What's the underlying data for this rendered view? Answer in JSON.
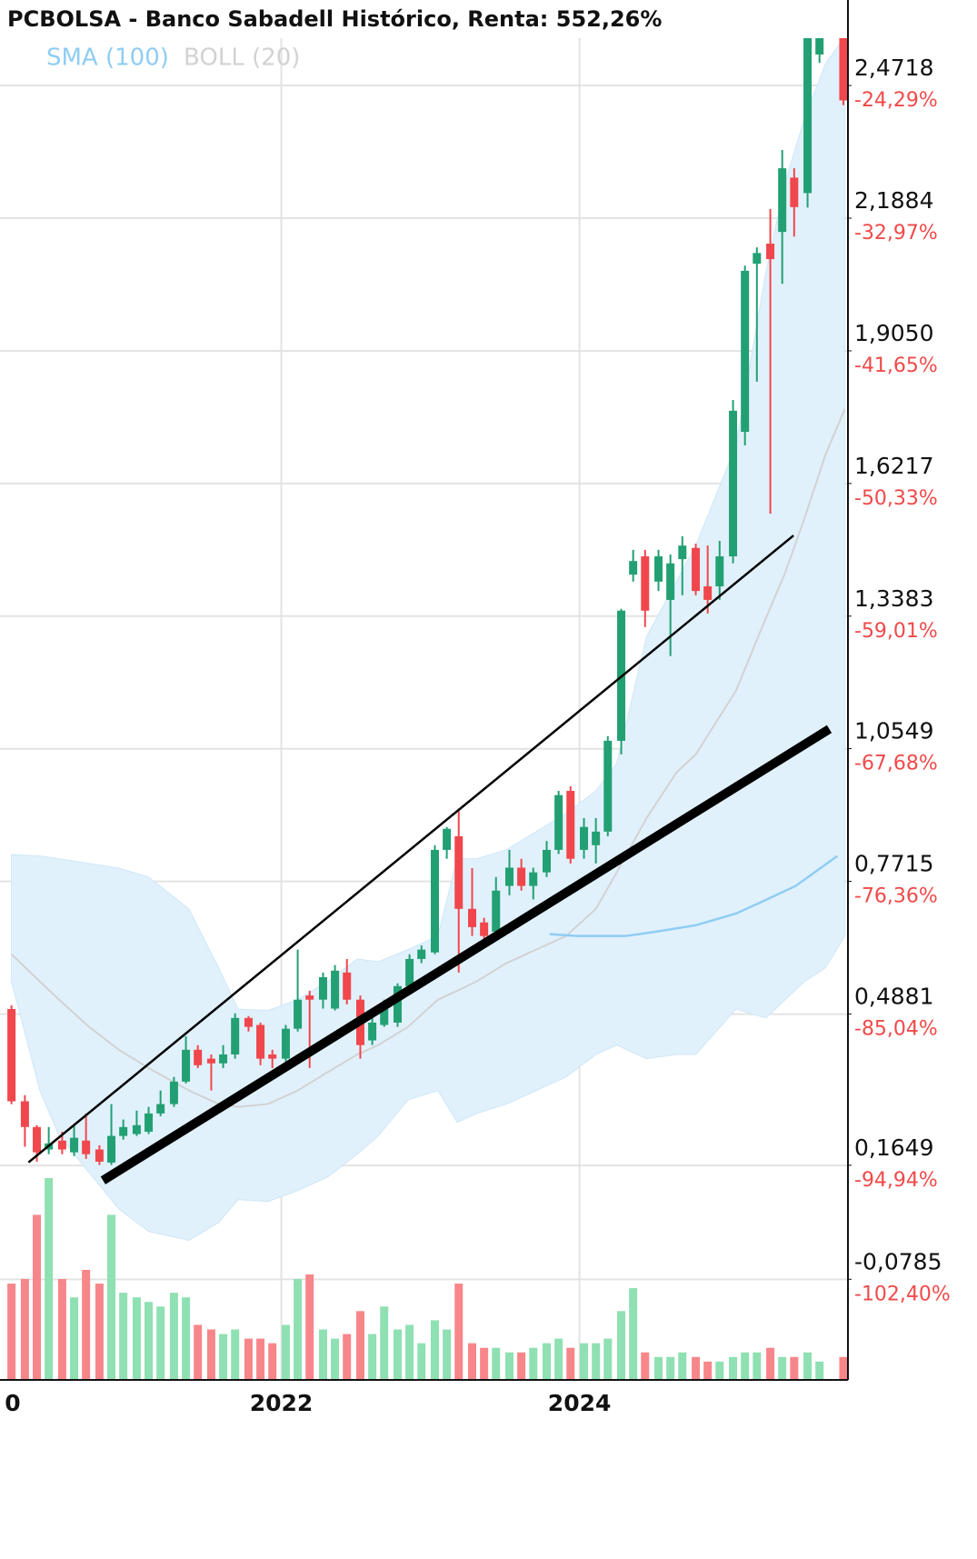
{
  "chart_data": {
    "type": "candlestick",
    "title": "PCBOLSA - Banco Sabadell Histórico, Renta: 552,26%",
    "x": [
      2020.19,
      2020.28,
      2020.36,
      2020.44,
      2020.53,
      2020.61,
      2020.69,
      2020.78,
      2020.86,
      2020.94,
      2021.03,
      2021.11,
      2021.19,
      2021.28,
      2021.36,
      2021.44,
      2021.53,
      2021.61,
      2021.69,
      2021.78,
      2021.86,
      2021.94,
      2022.03,
      2022.11,
      2022.19,
      2022.28,
      2022.36,
      2022.44,
      2022.53,
      2022.61,
      2022.69,
      2022.78,
      2022.86,
      2022.94,
      2023.03,
      2023.11,
      2023.19,
      2023.28,
      2023.36,
      2023.44,
      2023.53,
      2023.61,
      2023.69,
      2023.78,
      2023.86,
      2023.94,
      2024.03,
      2024.11,
      2024.19,
      2024.28,
      2024.36,
      2024.44,
      2024.53,
      2024.61,
      2024.69,
      2024.78,
      2024.86,
      2024.94,
      2025.03,
      2025.11,
      2025.19,
      2025.28,
      2025.36,
      2025.44,
      2025.53,
      2025.61,
      2025.77
    ],
    "open": [
      0.499,
      0.302,
      0.247,
      0.199,
      0.218,
      0.193,
      0.218,
      0.199,
      0.171,
      0.228,
      0.232,
      0.237,
      0.276,
      0.296,
      0.344,
      0.412,
      0.393,
      0.383,
      0.402,
      0.48,
      0.465,
      0.402,
      0.393,
      0.457,
      0.528,
      0.519,
      0.5,
      0.577,
      0.519,
      0.432,
      0.465,
      0.47,
      0.548,
      0.606,
      0.62,
      0.839,
      0.868,
      0.713,
      0.684,
      0.664,
      0.762,
      0.801,
      0.762,
      0.791,
      0.839,
      0.965,
      0.839,
      0.849,
      0.878,
      1.072,
      1.427,
      1.466,
      1.412,
      1.373,
      1.46,
      1.484,
      1.402,
      1.402,
      1.466,
      1.732,
      2.091,
      2.134,
      2.159,
      2.275,
      2.242,
      2.538,
      2.6
    ],
    "high": [
      0.507,
      0.315,
      0.251,
      0.247,
      0.237,
      0.251,
      0.276,
      0.208,
      0.296,
      0.263,
      0.282,
      0.29,
      0.325,
      0.354,
      0.441,
      0.422,
      0.402,
      0.422,
      0.49,
      0.484,
      0.47,
      0.412,
      0.465,
      0.626,
      0.538,
      0.577,
      0.593,
      0.606,
      0.528,
      0.48,
      0.519,
      0.554,
      0.616,
      0.635,
      0.849,
      0.888,
      0.927,
      0.8,
      0.694,
      0.781,
      0.839,
      0.82,
      0.801,
      0.858,
      0.965,
      0.975,
      0.907,
      0.907,
      1.082,
      1.354,
      1.48,
      1.48,
      1.48,
      1.47,
      1.509,
      1.493,
      1.489,
      1.499,
      1.8,
      2.087,
      2.126,
      2.208,
      2.334,
      2.295,
      2.586,
      2.62,
      2.62
    ],
    "low": [
      0.296,
      0.205,
      0.173,
      0.189,
      0.189,
      0.185,
      0.179,
      0.166,
      0.166,
      0.22,
      0.228,
      0.232,
      0.27,
      0.29,
      0.34,
      0.373,
      0.325,
      0.373,
      0.393,
      0.451,
      0.379,
      0.373,
      0.387,
      0.451,
      0.373,
      0.5,
      0.496,
      0.509,
      0.393,
      0.422,
      0.461,
      0.461,
      0.538,
      0.597,
      0.616,
      0.82,
      0.577,
      0.655,
      0.645,
      0.655,
      0.742,
      0.752,
      0.733,
      0.781,
      0.83,
      0.81,
      0.82,
      0.81,
      0.868,
      1.043,
      1.412,
      1.315,
      1.392,
      1.253,
      1.383,
      1.383,
      1.344,
      1.373,
      1.451,
      1.703,
      1.839,
      1.557,
      2.048,
      2.149,
      2.211,
      2.52,
      2.43
    ],
    "close": [
      0.302,
      0.247,
      0.193,
      0.212,
      0.199,
      0.224,
      0.189,
      0.173,
      0.228,
      0.247,
      0.251,
      0.276,
      0.296,
      0.344,
      0.412,
      0.379,
      0.383,
      0.402,
      0.48,
      0.461,
      0.393,
      0.393,
      0.457,
      0.519,
      0.519,
      0.567,
      0.581,
      0.519,
      0.422,
      0.47,
      0.5,
      0.548,
      0.606,
      0.626,
      0.839,
      0.884,
      0.713,
      0.674,
      0.655,
      0.752,
      0.801,
      0.762,
      0.791,
      0.839,
      0.956,
      0.82,
      0.888,
      0.878,
      1.072,
      1.35,
      1.456,
      1.35,
      1.466,
      1.451,
      1.489,
      1.392,
      1.373,
      1.466,
      1.777,
      2.076,
      2.114,
      2.101,
      2.295,
      2.212,
      2.576,
      2.6,
      2.44
    ],
    "volume": [
      105,
      110,
      180,
      220,
      110,
      90,
      120,
      105,
      180,
      95,
      90,
      85,
      80,
      95,
      90,
      60,
      55,
      50,
      55,
      45,
      45,
      40,
      60,
      110,
      115,
      55,
      45,
      50,
      75,
      50,
      80,
      55,
      60,
      40,
      65,
      55,
      105,
      40,
      35,
      35,
      30,
      30,
      35,
      40,
      45,
      35,
      40,
      40,
      45,
      75,
      100,
      30,
      25,
      25,
      30,
      25,
      20,
      20,
      25,
      30,
      30,
      35,
      25,
      25,
      30,
      20,
      25
    ],
    "up_color": "#22a073",
    "down_color": "#f0474c",
    "volume_up_color": "#8fe0b2",
    "volume_down_color": "#f7868a",
    "indicators": [
      {
        "name": "SMA (100)",
        "color": "#8fcdf3",
        "x": [
          2023.8,
          2023.98,
          2024.31,
          2024.51,
          2024.78,
          2025.05,
          2025.25,
          2025.45,
          2025.73
        ],
        "values": [
          0.659,
          0.655,
          0.655,
          0.664,
          0.678,
          0.703,
          0.732,
          0.762,
          0.826
        ]
      },
      {
        "name": "BOLL (20)",
        "color": "#d2d2d2",
        "fill": "#e0f1fc",
        "x": [
          2020.19,
          2020.38,
          2020.51,
          2020.71,
          2020.91,
          2021.11,
          2021.38,
          2021.58,
          2021.71,
          2021.91,
          2022.11,
          2022.31,
          2022.51,
          2022.65,
          2022.85,
          2023.05,
          2023.18,
          2023.31,
          2023.51,
          2023.71,
          2023.91,
          2024.11,
          2024.25,
          2024.45,
          2024.65,
          2024.78,
          2025.05,
          2025.25,
          2025.38,
          2025.51,
          2025.65,
          2025.78
        ],
        "upper": [
          0.829,
          0.826,
          0.82,
          0.81,
          0.8,
          0.781,
          0.713,
          0.587,
          0.499,
          0.496,
          0.519,
          0.558,
          0.606,
          0.6,
          0.626,
          0.655,
          0.82,
          0.82,
          0.839,
          0.878,
          0.917,
          0.965,
          1.024,
          1.295,
          1.412,
          1.489,
          1.703,
          2.072,
          2.266,
          2.402,
          2.518,
          2.576
        ],
        "middle": [
          0.616,
          0.558,
          0.519,
          0.461,
          0.412,
          0.373,
          0.325,
          0.296,
          0.29,
          0.296,
          0.325,
          0.364,
          0.402,
          0.422,
          0.461,
          0.519,
          0.538,
          0.558,
          0.597,
          0.626,
          0.655,
          0.713,
          0.791,
          0.907,
          1.004,
          1.043,
          1.179,
          1.334,
          1.431,
          1.548,
          1.683,
          1.781
        ],
        "lower": [
          0.558,
          0.325,
          0.228,
          0.15,
          0.072,
          0.024,
          0.005,
          0.043,
          0.092,
          0.088,
          0.111,
          0.14,
          0.189,
          0.228,
          0.305,
          0.325,
          0.257,
          0.276,
          0.296,
          0.325,
          0.354,
          0.402,
          0.422,
          0.393,
          0.402,
          0.402,
          0.499,
          0.48,
          0.519,
          0.558,
          0.587,
          0.655
        ]
      }
    ],
    "trendlines": [
      {
        "x": [
          2020.31,
          2025.43
        ],
        "values": [
          0.173,
          1.509
        ]
      },
      {
        "x": [
          2020.83,
          2025.65
        ],
        "values": [
          0.138,
          1.092
        ]
      }
    ],
    "xlim": [
      2020.113,
      2025.813
    ],
    "xticks": [
      {
        "value": 2020,
        "label": "0"
      },
      2022,
      2024
    ],
    "ylim": [
      -0.2,
      2.635
    ],
    "yticks": [
      {
        "value": 2.4718,
        "label": "2,4718"
      },
      {
        "value": 2.1884,
        "label": "2,1884"
      },
      {
        "value": 1.905,
        "label": "1,9050"
      },
      {
        "value": 1.6217,
        "label": "1,6217"
      },
      {
        "value": 1.3383,
        "label": "1,3383"
      },
      {
        "value": 1.0549,
        "label": "1,0549"
      },
      {
        "value": 0.7715,
        "label": "0,7715"
      },
      {
        "value": 0.4881,
        "label": "0,4881"
      },
      {
        "value": 0.1649,
        "label": "0,1649"
      },
      {
        "value": -0.0785,
        "label": "-0,0785"
      }
    ],
    "y2lim": [
      -106.13,
      -19.29
    ],
    "y2ticks": [
      {
        "value": -24.29,
        "label": "-24,29%"
      },
      {
        "value": -32.97,
        "label": "-32,97%"
      },
      {
        "value": -41.65,
        "label": "-41,65%"
      },
      {
        "value": -50.33,
        "label": "-50,33%"
      },
      {
        "value": -59.01,
        "label": "-59,01%"
      },
      {
        "value": -67.68,
        "label": "-67,68%"
      },
      {
        "value": -76.36,
        "label": "-76,36%"
      },
      {
        "value": -85.04,
        "label": "-85,04%"
      },
      {
        "value": -94.94,
        "label": "-94,94%"
      },
      {
        "value": -102.4,
        "label": "-102,40%"
      }
    ],
    "grid": true
  }
}
